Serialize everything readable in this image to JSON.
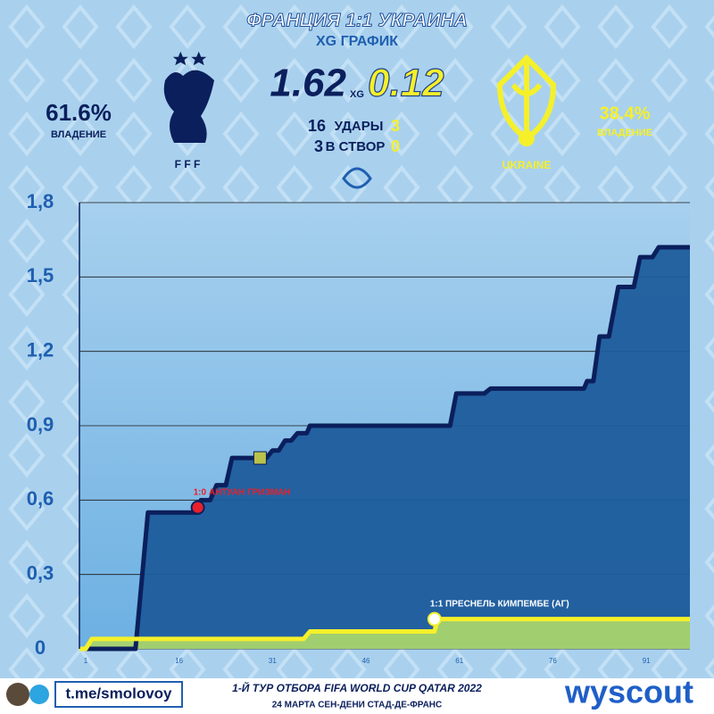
{
  "header": {
    "home_xg": "1.62",
    "xg_label": "XG",
    "away_xg": "0.12",
    "home_possession": "61.6%",
    "home_possession_label": "ВЛАДЕНИЕ",
    "away_possession": "38.4%",
    "away_possession_label": "ВЛАДЕНИЕ",
    "home_shots": "16",
    "shots_label": "УДАРЫ",
    "away_shots": "3",
    "home_on_target": "3",
    "on_target_label": "В СТВОР",
    "away_on_target": "0",
    "home_logo_text": "F F F",
    "away_logo_text": "UKRAINE"
  },
  "footer": {
    "handle": "t.me/smolovoy",
    "line1": "1-Й ТУР ОТБОРА FIFA WORLD CUP QATAR 2022",
    "line2": "24 МАРТА СЕН-ДЕНИ СТАД-ДЕ-ФРАНС",
    "brand": "wyscout"
  },
  "chart_data": {
    "type": "line",
    "title": "ФРАНЦИЯ 1:1 УКРАИНА",
    "subtitle": "XG ГРАФИК",
    "xlim": [
      0,
      98
    ],
    "xticks": [
      1,
      16,
      31,
      46,
      61,
      76,
      91
    ],
    "ylim": [
      0,
      1.8
    ],
    "yticks": [
      0,
      {
        "value": 0.3,
        "label": "0,3"
      },
      {
        "value": 0.6,
        "label": "0,6"
      },
      {
        "value": 0.9,
        "label": "0,9"
      },
      {
        "value": 1.2,
        "label": "1,2"
      },
      {
        "value": 1.5,
        "label": "1,5"
      },
      {
        "value": 1.8,
        "label": "1,8"
      }
    ],
    "grid": true,
    "series": [
      {
        "name": "Франция",
        "color": "#0b1f5c",
        "fill": "#1d5c9c",
        "x": [
          0,
          9,
          11,
          19,
          19.5,
          21,
          22,
          23.5,
          24.5,
          30,
          31,
          32,
          33,
          34,
          35,
          36.5,
          37,
          59.5,
          60.5,
          65,
          66,
          81,
          81.5,
          82.5,
          83.5,
          85,
          86.5,
          89,
          90,
          92,
          93,
          98
        ],
        "values": [
          0,
          0,
          0.55,
          0.55,
          0.6,
          0.6,
          0.66,
          0.66,
          0.77,
          0.77,
          0.8,
          0.8,
          0.84,
          0.84,
          0.87,
          0.87,
          0.9,
          0.9,
          1.03,
          1.03,
          1.05,
          1.05,
          1.08,
          1.08,
          1.26,
          1.26,
          1.46,
          1.46,
          1.58,
          1.58,
          1.62,
          1.62
        ]
      },
      {
        "name": "Украина",
        "color": "#f5f02a",
        "fill": "#a9d46b",
        "x": [
          0,
          1,
          2,
          36,
          37,
          57,
          57.5,
          98
        ],
        "values": [
          0,
          0,
          0.04,
          0.04,
          0.07,
          0.07,
          0.12,
          0.12
        ]
      }
    ],
    "annotations": [
      {
        "x": 19,
        "y": 0.57,
        "label": "1:0 АНТУАН ГРИЗМАН",
        "color": "#e8202a"
      },
      {
        "x": 57,
        "y": 0.12,
        "label": "1:1 ПРЕСНЕЛЬ КИМПЕМБЕ (АГ)",
        "color": "#ffffff"
      }
    ],
    "events": [
      {
        "x": 29,
        "y": 0.77,
        "color": "#b9c24a"
      }
    ]
  }
}
